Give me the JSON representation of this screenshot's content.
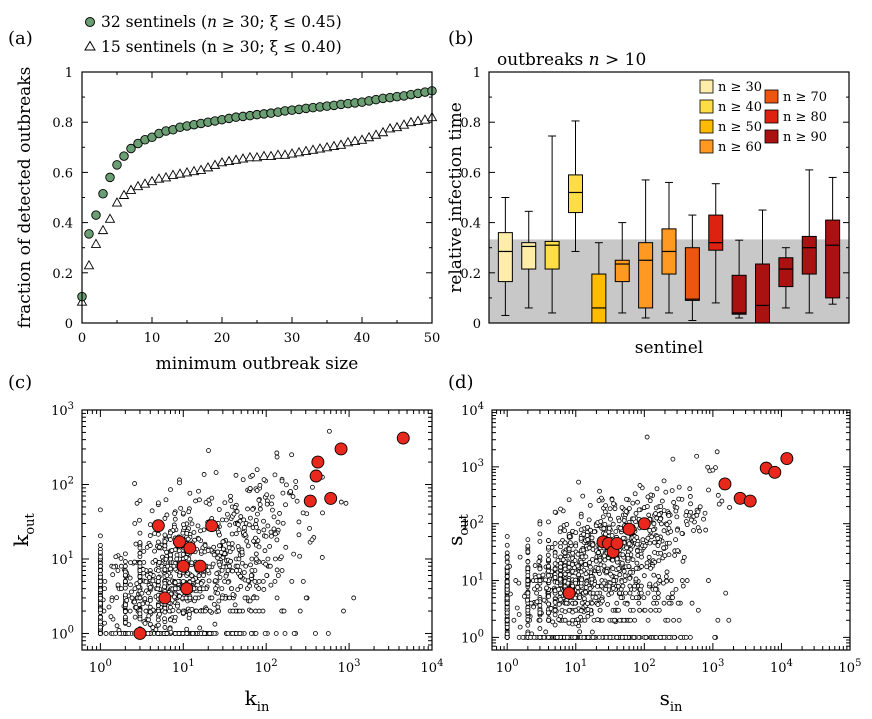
{
  "colors": {
    "green": "#6b9e72",
    "red": "#e8281c",
    "shade": "#c8c8c8",
    "box": [
      "#ffeeaa",
      "#ffdd44",
      "#ffbb00",
      "#ff9922",
      "#ee5511",
      "#dd2211",
      "#aa1111"
    ]
  },
  "chart_data": [
    {
      "id": "a",
      "panel_label": "(a)",
      "type": "scatter",
      "xlabel": "minimum outbreak size",
      "ylabel": "fraction of detected outbreaks",
      "xlim": [
        0,
        50
      ],
      "ylim": [
        0,
        1
      ],
      "xticks": [
        "0",
        "10",
        "20",
        "30",
        "40",
        "50"
      ],
      "yticks": [
        "0",
        "0.2",
        "0.4",
        "0.6",
        "0.8",
        "1"
      ],
      "grid": false,
      "legend_position": "top-left (outside)",
      "series": [
        {
          "name": "32 sentinels (n ≥ 30; ξ ≤ 0.45)",
          "name_parts": [
            "32 sentinels (",
            "n",
            " ≥ 30; ξ ≤ 0.45)"
          ],
          "marker": "circle",
          "x": [
            0,
            1,
            2,
            3,
            4,
            5,
            6,
            7,
            8,
            9,
            10,
            11,
            12,
            13,
            14,
            15,
            16,
            17,
            18,
            19,
            20,
            21,
            22,
            23,
            24,
            25,
            26,
            27,
            28,
            29,
            30,
            31,
            32,
            33,
            34,
            35,
            36,
            37,
            38,
            39,
            40,
            41,
            42,
            43,
            44,
            45,
            46,
            47,
            48,
            49,
            50
          ],
          "y": [
            0.105,
            0.355,
            0.43,
            0.515,
            0.58,
            0.63,
            0.665,
            0.695,
            0.715,
            0.73,
            0.74,
            0.755,
            0.765,
            0.77,
            0.78,
            0.785,
            0.79,
            0.795,
            0.8,
            0.805,
            0.81,
            0.815,
            0.82,
            0.823,
            0.826,
            0.83,
            0.833,
            0.836,
            0.84,
            0.845,
            0.848,
            0.851,
            0.855,
            0.858,
            0.861,
            0.864,
            0.867,
            0.871,
            0.874,
            0.877,
            0.88,
            0.885,
            0.89,
            0.895,
            0.898,
            0.902,
            0.905,
            0.91,
            0.915,
            0.92,
            0.925
          ]
        },
        {
          "name": "15 sentinels (n ≥ 30; ξ ≤ 0.40)",
          "name_parts": [
            "15 sentinels (n ≥ 30; ξ ≤ 0.40)"
          ],
          "marker": "triangle",
          "x": [
            0,
            1,
            2,
            3,
            4,
            5,
            6,
            7,
            8,
            9,
            10,
            11,
            12,
            13,
            14,
            15,
            16,
            17,
            18,
            19,
            20,
            21,
            22,
            23,
            24,
            25,
            26,
            27,
            28,
            29,
            30,
            31,
            32,
            33,
            34,
            35,
            36,
            37,
            38,
            39,
            40,
            41,
            42,
            43,
            44,
            45,
            46,
            47,
            48,
            49,
            50
          ],
          "y": [
            0.085,
            0.23,
            0.315,
            0.37,
            0.415,
            0.48,
            0.51,
            0.53,
            0.545,
            0.555,
            0.565,
            0.575,
            0.58,
            0.59,
            0.595,
            0.6,
            0.605,
            0.61,
            0.62,
            0.63,
            0.64,
            0.645,
            0.65,
            0.655,
            0.66,
            0.66,
            0.665,
            0.665,
            0.67,
            0.67,
            0.675,
            0.68,
            0.685,
            0.69,
            0.695,
            0.7,
            0.705,
            0.71,
            0.72,
            0.725,
            0.73,
            0.74,
            0.75,
            0.76,
            0.775,
            0.78,
            0.79,
            0.8,
            0.805,
            0.81,
            0.82
          ]
        }
      ]
    },
    {
      "id": "b",
      "panel_label": "(b)",
      "type": "box",
      "title": "outbreaks",
      "title_var": "n",
      "title_cond": " > 10",
      "xlabel": "sentinel",
      "ylabel": "relative infection time",
      "ylim": [
        0,
        1
      ],
      "yticks": [
        "0",
        "0.2",
        "0.4",
        "0.6",
        "0.8",
        "1"
      ],
      "shaded_band": [
        0,
        0.333
      ],
      "legend_position": "top-right",
      "legend": [
        "n ≥ 30",
        "n ≥ 40",
        "n ≥ 50",
        "n ≥ 60",
        "n ≥ 70",
        "n ≥ 80",
        "n ≥ 90"
      ],
      "boxes": [
        {
          "group": 0,
          "whisker_low": 0.03,
          "q1": 0.165,
          "median": 0.285,
          "q3": 0.36,
          "whisker_high": 0.5
        },
        {
          "group": 0,
          "whisker_low": 0.06,
          "q1": 0.215,
          "median": 0.305,
          "q3": 0.32,
          "whisker_high": 0.445
        },
        {
          "group": 1,
          "whisker_low": 0.04,
          "q1": 0.215,
          "median": 0.31,
          "q3": 0.325,
          "whisker_high": 0.745
        },
        {
          "group": 1,
          "whisker_low": 0.285,
          "q1": 0.44,
          "median": 0.52,
          "q3": 0.59,
          "whisker_high": 0.805
        },
        {
          "group": 2,
          "whisker_low": 0.0,
          "q1": 0.0,
          "median": 0.06,
          "q3": 0.195,
          "whisker_high": 0.32
        },
        {
          "group": 3,
          "whisker_low": 0.04,
          "q1": 0.165,
          "median": 0.235,
          "q3": 0.25,
          "whisker_high": 0.4
        },
        {
          "group": 3,
          "whisker_low": 0.02,
          "q1": 0.06,
          "median": 0.25,
          "q3": 0.32,
          "whisker_high": 0.57
        },
        {
          "group": 3,
          "whisker_low": 0.04,
          "q1": 0.195,
          "median": 0.285,
          "q3": 0.375,
          "whisker_high": 0.56
        },
        {
          "group": 4,
          "whisker_low": 0.01,
          "q1": 0.09,
          "median": 0.095,
          "q3": 0.3,
          "whisker_high": 0.43
        },
        {
          "group": 5,
          "whisker_low": 0.08,
          "q1": 0.29,
          "median": 0.32,
          "q3": 0.43,
          "whisker_high": 0.555
        },
        {
          "group": 6,
          "whisker_low": 0.02,
          "q1": 0.035,
          "median": 0.04,
          "q3": 0.19,
          "whisker_high": 0.33
        },
        {
          "group": 6,
          "whisker_low": 0.0,
          "q1": 0.0,
          "median": 0.07,
          "q3": 0.235,
          "whisker_high": 0.45
        },
        {
          "group": 6,
          "whisker_low": 0.06,
          "q1": 0.145,
          "median": 0.215,
          "q3": 0.26,
          "whisker_high": 0.3
        },
        {
          "group": 6,
          "whisker_low": 0.04,
          "q1": 0.195,
          "median": 0.3,
          "q3": 0.345,
          "whisker_high": 0.61
        },
        {
          "group": 6,
          "whisker_low": 0.075,
          "q1": 0.1,
          "median": 0.31,
          "q3": 0.41,
          "whisker_high": 0.58
        }
      ]
    },
    {
      "id": "c",
      "panel_label": "(c)",
      "type": "scatter",
      "scale": "log-log",
      "xlabel": "k",
      "xlabel_sub": "in",
      "ylabel": "k",
      "ylabel_sub": "out",
      "xlim": [
        0.6,
        10000
      ],
      "ylim": [
        0.6,
        1000
      ],
      "xticks": [
        {
          "base": "10",
          "exp": "0"
        },
        {
          "base": "10",
          "exp": "1"
        },
        {
          "base": "10",
          "exp": "2"
        },
        {
          "base": "10",
          "exp": "3"
        },
        {
          "base": "10",
          "exp": "4"
        }
      ],
      "yticks": [
        {
          "base": "10",
          "exp": "0"
        },
        {
          "base": "10",
          "exp": "1"
        },
        {
          "base": "10",
          "exp": "2"
        },
        {
          "base": "10",
          "exp": "3"
        }
      ],
      "background_cloud": {
        "count": 1300,
        "center_log": [
          1.2,
          0.95
        ]
      },
      "highlighted": {
        "x": [
          3,
          5,
          6,
          9,
          10,
          11,
          12,
          16,
          22,
          340,
          400,
          420,
          600,
          800,
          4500
        ],
        "y": [
          1,
          28,
          3,
          17,
          8,
          4,
          14,
          8,
          28,
          60,
          130,
          200,
          65,
          300,
          420
        ]
      }
    },
    {
      "id": "d",
      "panel_label": "(d)",
      "type": "scatter",
      "scale": "log-log",
      "xlabel": "s",
      "xlabel_sub": "in",
      "ylabel": "s",
      "ylabel_sub": "out",
      "xlim": [
        0.6,
        100000
      ],
      "ylim": [
        0.6,
        10000
      ],
      "xticks": [
        {
          "base": "10",
          "exp": "0"
        },
        {
          "base": "10",
          "exp": "1"
        },
        {
          "base": "10",
          "exp": "2"
        },
        {
          "base": "10",
          "exp": "3"
        },
        {
          "base": "10",
          "exp": "4"
        },
        {
          "base": "10",
          "exp": "5"
        }
      ],
      "yticks": [
        {
          "base": "10",
          "exp": "0"
        },
        {
          "base": "10",
          "exp": "1"
        },
        {
          "base": "10",
          "exp": "2"
        },
        {
          "base": "10",
          "exp": "3"
        },
        {
          "base": "10",
          "exp": "4"
        }
      ],
      "background_cloud": {
        "count": 1500,
        "center_log": [
          1.5,
          1.5
        ]
      },
      "highlighted": {
        "x": [
          8,
          25,
          30,
          35,
          40,
          60,
          100,
          1500,
          2500,
          3500,
          6000,
          8000,
          12000
        ],
        "y": [
          6,
          48,
          45,
          32,
          45,
          80,
          100,
          500,
          280,
          250,
          950,
          800,
          1400
        ]
      }
    }
  ]
}
